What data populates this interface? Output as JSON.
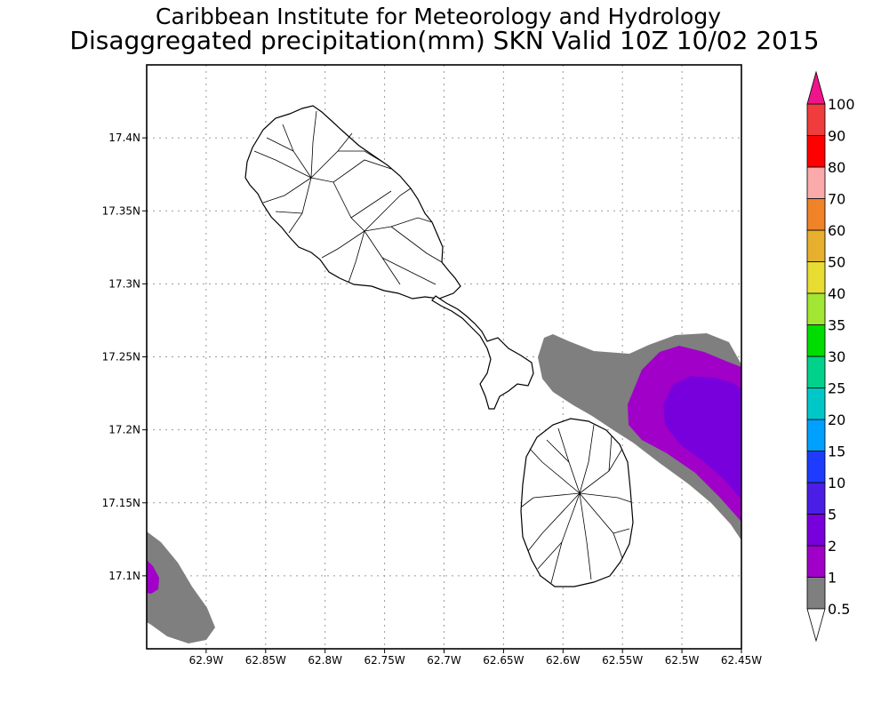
{
  "header": {
    "title": "Caribbean Institute for Meteorology and Hydrology",
    "subtitle": "Disaggregated precipitation(mm) SKN Valid 10Z 10/02 2015"
  },
  "map": {
    "x_range": [
      -62.95,
      -62.45
    ],
    "y_range": [
      17.05,
      17.45
    ],
    "x_ticks": [
      {
        "value": -62.9,
        "label": "62.9W"
      },
      {
        "value": -62.85,
        "label": "62.85W"
      },
      {
        "value": -62.8,
        "label": "62.8W"
      },
      {
        "value": -62.75,
        "label": "62.75W"
      },
      {
        "value": -62.7,
        "label": "62.7W"
      },
      {
        "value": -62.65,
        "label": "62.65W"
      },
      {
        "value": -62.6,
        "label": "62.6W"
      },
      {
        "value": -62.55,
        "label": "62.55W"
      },
      {
        "value": -62.5,
        "label": "62.5W"
      },
      {
        "value": -62.45,
        "label": "62.45W"
      }
    ],
    "y_ticks": [
      {
        "value": 17.1,
        "label": "17.1N"
      },
      {
        "value": 17.15,
        "label": "17.15N"
      },
      {
        "value": 17.2,
        "label": "17.2N"
      },
      {
        "value": 17.25,
        "label": "17.25N"
      },
      {
        "value": 17.3,
        "label": "17.3N"
      },
      {
        "value": 17.35,
        "label": "17.35N"
      },
      {
        "value": 17.4,
        "label": "17.4N"
      }
    ],
    "grid": true
  },
  "colorbar": {
    "levels": [
      {
        "label": "0.5",
        "color": "#7f7f7f"
      },
      {
        "label": "1",
        "color": "#a000c8"
      },
      {
        "label": "2",
        "color": "#7800dc"
      },
      {
        "label": "5",
        "color": "#4b1ee6"
      },
      {
        "label": "10",
        "color": "#1e3cff"
      },
      {
        "label": "15",
        "color": "#00a0ff"
      },
      {
        "label": "20",
        "color": "#00c8c8"
      },
      {
        "label": "25",
        "color": "#00d28c"
      },
      {
        "label": "30",
        "color": "#00dc00"
      },
      {
        "label": "35",
        "color": "#a0e632"
      },
      {
        "label": "40",
        "color": "#e6dc32"
      },
      {
        "label": "50",
        "color": "#e6af2d"
      },
      {
        "label": "60",
        "color": "#f08228"
      },
      {
        "label": "70",
        "color": "#faaaaa"
      },
      {
        "label": "80",
        "color": "#ff0000"
      },
      {
        "label": "90",
        "color": "#f03c3c"
      },
      {
        "label": "100",
        "color": ""
      }
    ],
    "top_arrow_color": "#f0148c",
    "bottom_arrow_color": "#ffffff"
  }
}
